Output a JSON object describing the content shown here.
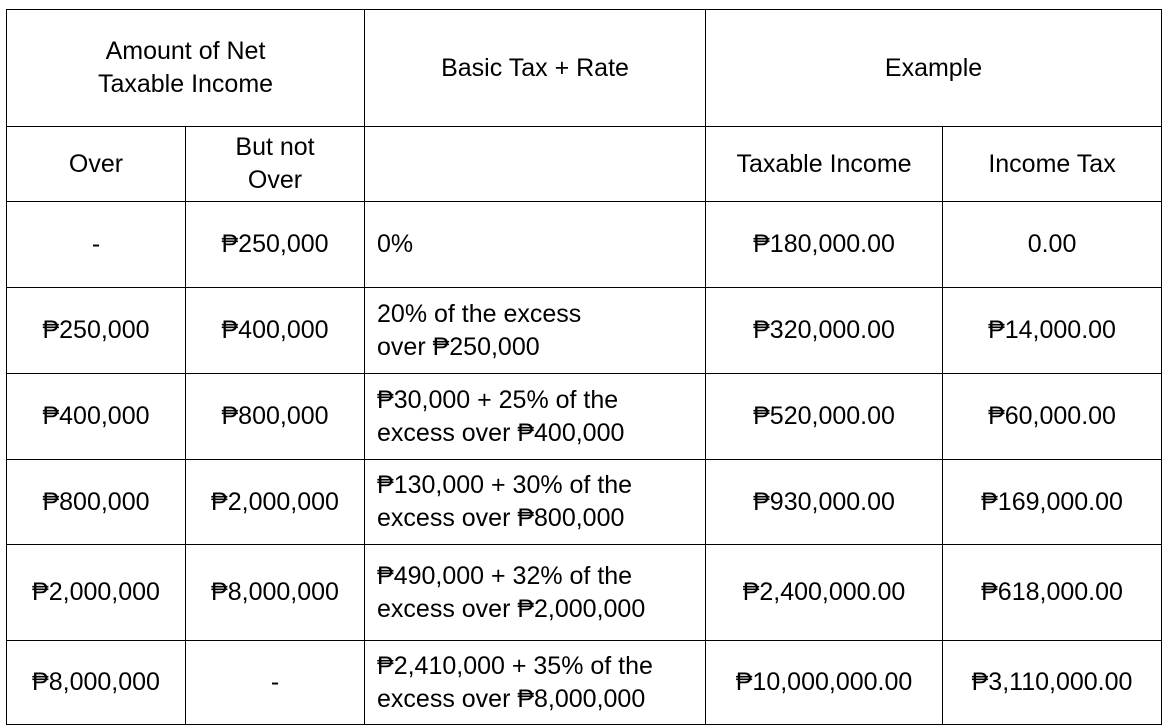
{
  "header": {
    "amount_group": [
      "Amount of Net",
      "Taxable Income"
    ],
    "basic_tax_rate": "Basic Tax + Rate",
    "example": "Example",
    "over": "Over",
    "but_not_over": [
      "But not",
      "Over"
    ],
    "rate_sub": "",
    "taxable_income": "Taxable Income",
    "income_tax": "Income Tax"
  },
  "rows": [
    {
      "over": "-",
      "not_over": "₱250,000",
      "rate": [
        "0%",
        ""
      ],
      "taxable_income": "₱180,000.00",
      "income_tax": "0.00"
    },
    {
      "over": "₱250,000",
      "not_over": "₱400,000",
      "rate": [
        "20% of the excess",
        "over ₱250,000"
      ],
      "taxable_income": "₱320,000.00",
      "income_tax": "₱14,000.00"
    },
    {
      "over": "₱400,000",
      "not_over": "₱800,000",
      "rate": [
        "₱30,000 + 25% of the",
        "excess over ₱400,000"
      ],
      "taxable_income": "₱520,000.00",
      "income_tax": "₱60,000.00"
    },
    {
      "over": "₱800,000",
      "not_over": "₱2,000,000",
      "rate": [
        "₱130,000 + 30% of the",
        "excess over ₱800,000"
      ],
      "taxable_income": "₱930,000.00",
      "income_tax": "₱169,000.00"
    },
    {
      "over": "₱2,000,000",
      "not_over": "₱8,000,000",
      "rate": [
        "₱490,000 + 32% of the",
        "excess over ₱2,000,000"
      ],
      "taxable_income": "₱2,400,000.00",
      "income_tax": "₱618,000.00"
    },
    {
      "over": "₱8,000,000",
      "not_over": "-",
      "rate": [
        "₱2,410,000 + 35% of the",
        "excess over ₱8,000,000"
      ],
      "taxable_income": "₱10,000,000.00",
      "income_tax": "₱3,110,000.00"
    }
  ]
}
